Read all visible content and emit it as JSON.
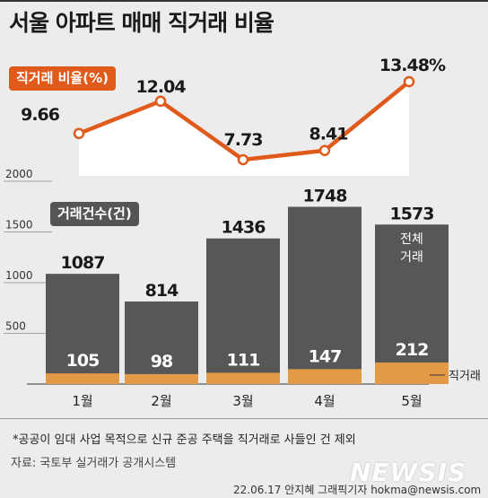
{
  "title": "서울 아파트 매매 직거래 비율",
  "legend": {
    "rate_label": "직거래 비율(%)",
    "count_label": "거래건수(건)",
    "total_label_line1": "전체",
    "total_label_line2": "거래",
    "direct_label": "직거래"
  },
  "footnote": "*공공이 임대 사업 목적으로 신규 준공 주택을 직거래로 사들인 건 제외",
  "source": "자료: 국토부 실거래가 공개시스템",
  "credit": "22.06.17 안지혜 그래픽기자 hokma@newsis.com",
  "watermark": "NEWSIS",
  "colors": {
    "rate_line": "#e05a1c",
    "total_bar": "#575757",
    "direct_bar": "#e39a47",
    "area": "#ffffff"
  },
  "chart_data": [
    {
      "type": "line",
      "categories": [
        "1월",
        "2월",
        "3월",
        "4월",
        "5월"
      ],
      "series": [
        {
          "name": "직거래 비율(%)",
          "values": [
            9.66,
            12.04,
            7.73,
            8.41,
            13.48
          ]
        }
      ],
      "value_labels": [
        "9.66",
        "12.04",
        "7.73",
        "8.41",
        "13.48%"
      ]
    },
    {
      "type": "bar",
      "categories": [
        "1월",
        "2월",
        "3월",
        "4월",
        "5월"
      ],
      "series": [
        {
          "name": "전체 거래",
          "values": [
            1087,
            814,
            1436,
            1748,
            1573
          ]
        },
        {
          "name": "직거래",
          "values": [
            105,
            98,
            111,
            147,
            212
          ]
        }
      ],
      "y_ticks": [
        2000,
        1500,
        1000,
        500
      ],
      "ylim": [
        0,
        2000
      ]
    }
  ]
}
